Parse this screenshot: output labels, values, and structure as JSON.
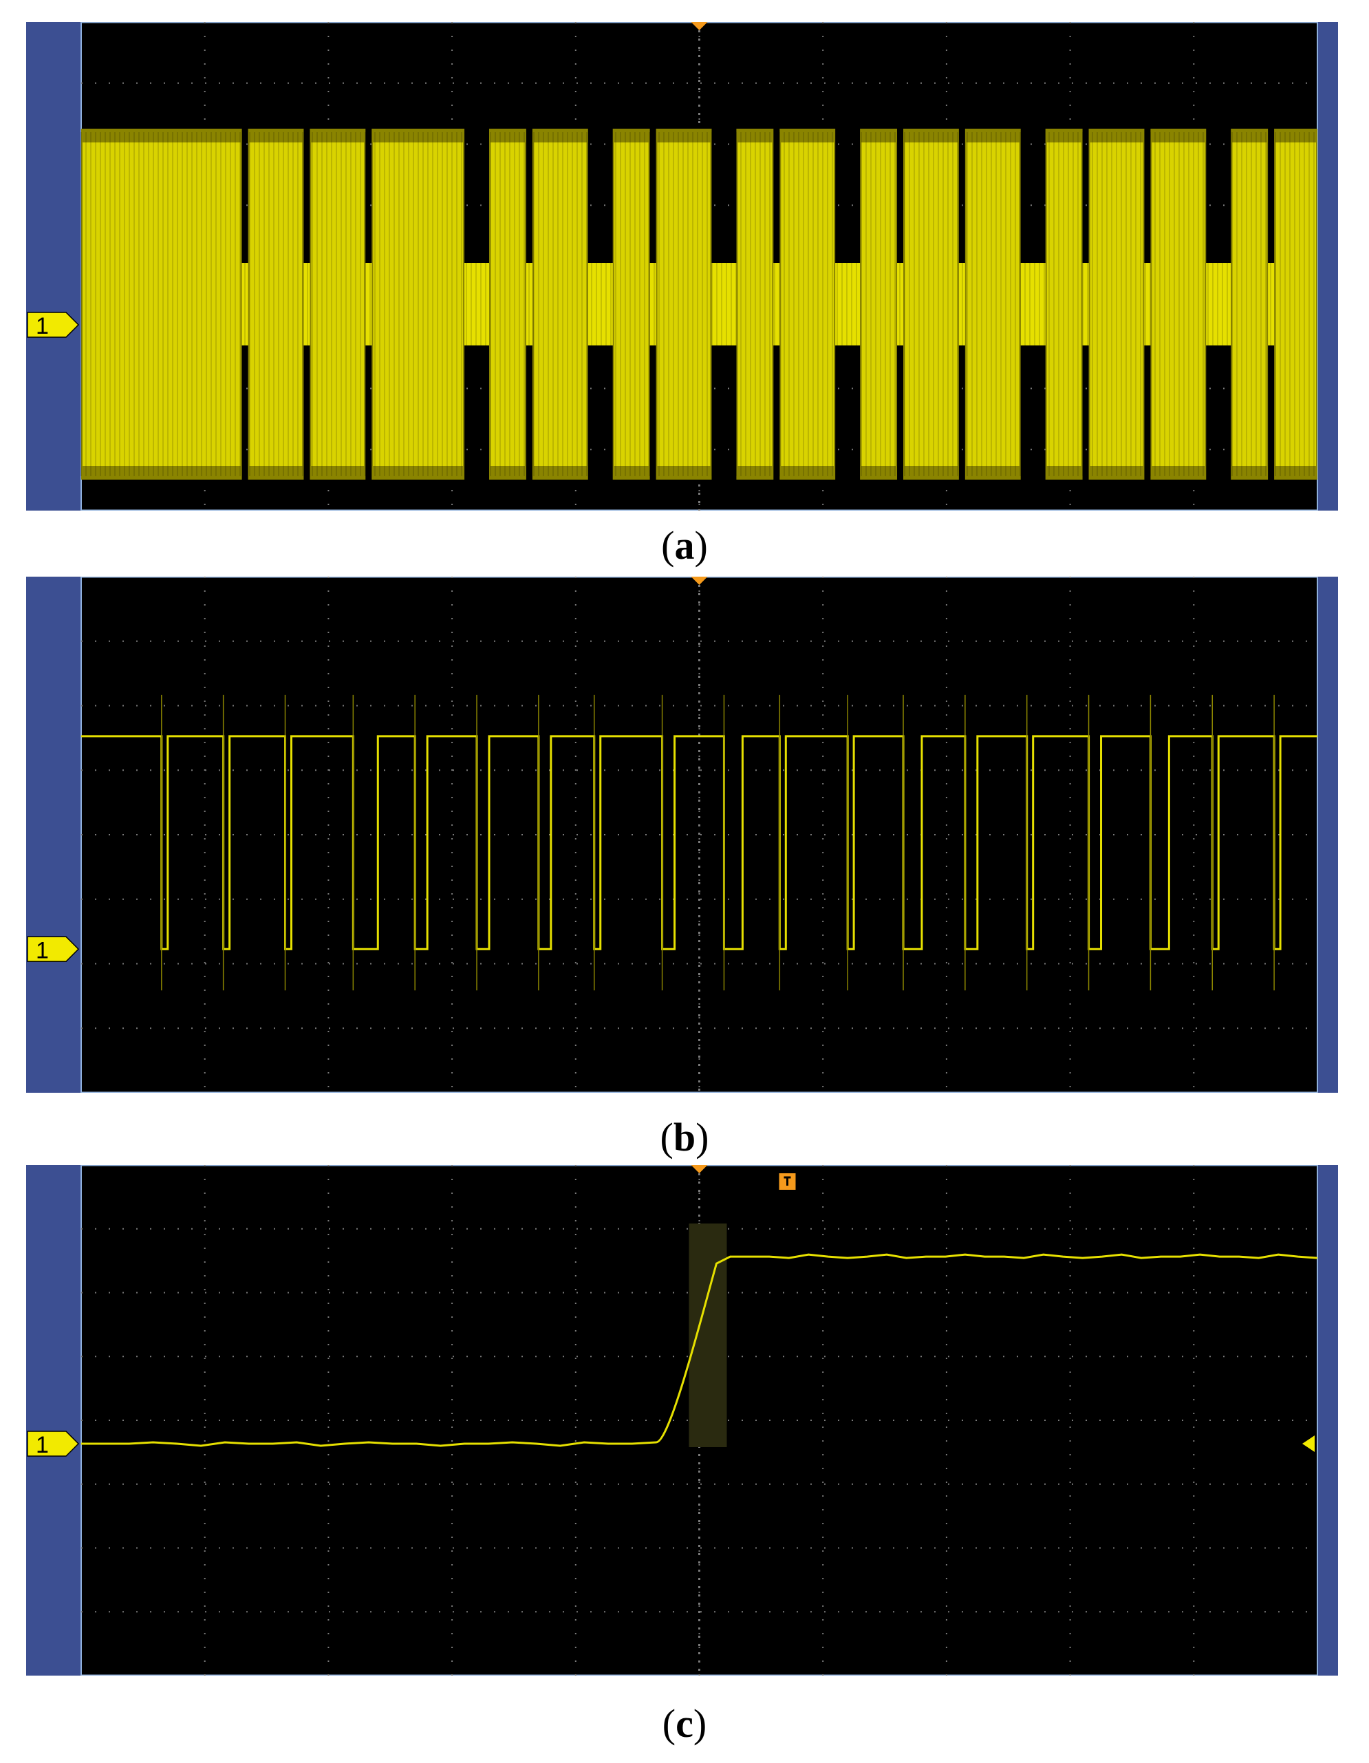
{
  "colors": {
    "side_panel": "#3c4f92",
    "side_panel_border": "#8fb0dc",
    "screen_bg": "#000000",
    "grid": "#7a7a7a",
    "trace": "#e6e000",
    "trace_dim": "#8a8400",
    "channel_marker": "#f2ea00",
    "trigger_marker": "#f59a1c"
  },
  "channel_marker_label": "1",
  "panels": [
    {
      "id": "a",
      "caption_open": "(",
      "caption_letter": "a",
      "caption_close": ")",
      "trace_kind": "modulated-burst",
      "bursts": [
        {
          "start": 0.0,
          "end": 0.13,
          "gap_wide": false
        },
        {
          "start": 0.135,
          "end": 0.18,
          "gap_wide": false
        },
        {
          "start": 0.185,
          "end": 0.23,
          "gap_wide": false
        },
        {
          "start": 0.235,
          "end": 0.31,
          "gap_wide": true
        },
        {
          "start": 0.33,
          "end": 0.36,
          "gap_wide": false
        },
        {
          "start": 0.365,
          "end": 0.41,
          "gap_wide": true
        },
        {
          "start": 0.43,
          "end": 0.46,
          "gap_wide": false
        },
        {
          "start": 0.465,
          "end": 0.51,
          "gap_wide": true
        },
        {
          "start": 0.53,
          "end": 0.56,
          "gap_wide": false
        },
        {
          "start": 0.565,
          "end": 0.61,
          "gap_wide": true
        },
        {
          "start": 0.63,
          "end": 0.66,
          "gap_wide": false
        },
        {
          "start": 0.665,
          "end": 0.71,
          "gap_wide": false
        },
        {
          "start": 0.715,
          "end": 0.76,
          "gap_wide": true
        },
        {
          "start": 0.78,
          "end": 0.81,
          "gap_wide": false
        },
        {
          "start": 0.815,
          "end": 0.86,
          "gap_wide": false
        },
        {
          "start": 0.865,
          "end": 0.91,
          "gap_wide": true
        },
        {
          "start": 0.93,
          "end": 0.96,
          "gap_wide": false
        },
        {
          "start": 0.965,
          "end": 1.0,
          "gap_wide": false
        }
      ]
    },
    {
      "id": "b",
      "caption_open": "(",
      "caption_letter": "b",
      "caption_close": ")",
      "trace_kind": "digital-pulse-train",
      "high_level_div": 1.9,
      "low_level_div": -1.4,
      "pulses": [
        {
          "low_start": 0.065,
          "low_end": 0.07
        },
        {
          "low_start": 0.115,
          "low_end": 0.12
        },
        {
          "low_start": 0.165,
          "low_end": 0.17
        },
        {
          "low_start": 0.22,
          "low_end": 0.24
        },
        {
          "low_start": 0.27,
          "low_end": 0.28
        },
        {
          "low_start": 0.32,
          "low_end": 0.33
        },
        {
          "low_start": 0.37,
          "low_end": 0.38
        },
        {
          "low_start": 0.415,
          "low_end": 0.42
        },
        {
          "low_start": 0.47,
          "low_end": 0.48
        },
        {
          "low_start": 0.52,
          "low_end": 0.535
        },
        {
          "low_start": 0.565,
          "low_end": 0.57
        },
        {
          "low_start": 0.62,
          "low_end": 0.625
        },
        {
          "low_start": 0.665,
          "low_end": 0.68
        },
        {
          "low_start": 0.715,
          "low_end": 0.725
        },
        {
          "low_start": 0.765,
          "low_end": 0.77
        },
        {
          "low_start": 0.815,
          "low_end": 0.825
        },
        {
          "low_start": 0.865,
          "low_end": 0.88
        },
        {
          "low_start": 0.915,
          "low_end": 0.92
        },
        {
          "low_start": 0.965,
          "low_end": 0.97
        }
      ]
    },
    {
      "id": "c",
      "caption_open": "(",
      "caption_letter": "c",
      "caption_close": ")",
      "trace_kind": "step-edge",
      "low_level_div": 0,
      "high_level_div": 2.5,
      "edge_start_frac": 0.465,
      "edge_end_frac": 0.525
    }
  ]
}
